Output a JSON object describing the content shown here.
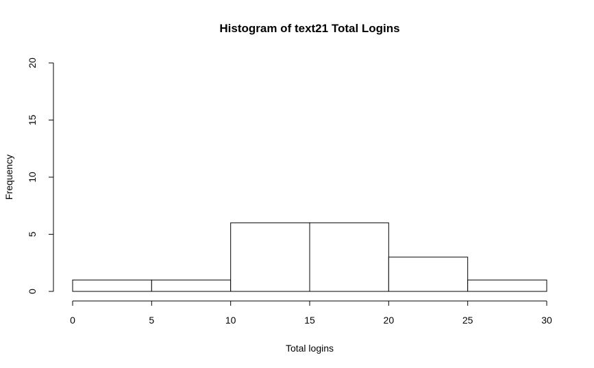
{
  "chart_data": {
    "type": "bar",
    "title": "Histogram of text21 Total Logins",
    "xlabel": "Total logins",
    "ylabel": "Frequency",
    "bins": [
      {
        "start": 0,
        "end": 5,
        "count": 1
      },
      {
        "start": 5,
        "end": 10,
        "count": 1
      },
      {
        "start": 10,
        "end": 15,
        "count": 6
      },
      {
        "start": 15,
        "end": 20,
        "count": 6
      },
      {
        "start": 20,
        "end": 25,
        "count": 3
      },
      {
        "start": 25,
        "end": 30,
        "count": 1
      }
    ],
    "xlim": [
      0,
      30
    ],
    "ylim": [
      0,
      20
    ],
    "x_ticks": [
      "0",
      "5",
      "10",
      "15",
      "20",
      "25",
      "30"
    ],
    "y_ticks": [
      "0",
      "5",
      "10",
      "15",
      "20"
    ],
    "bar_fill": "#ffffff",
    "bar_stroke": "#000000",
    "grid": false,
    "legend": "none"
  }
}
